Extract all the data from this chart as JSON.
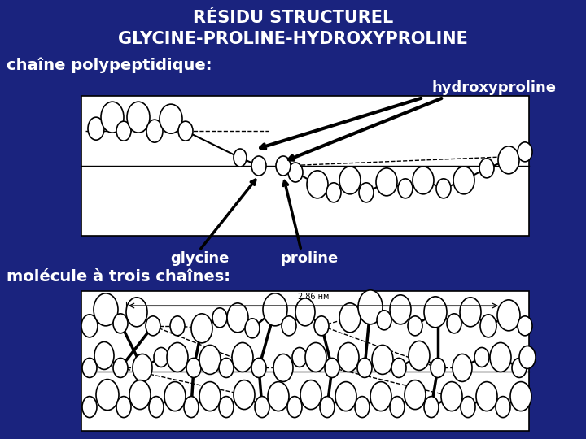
{
  "background_color": "#1a237e",
  "title_line1": "RÉSIDU STRUCTUREL",
  "title_line2": "GLYCINE-PROLINE-HYDROXYPROLINE",
  "title_color": "#ffffff",
  "title_fontsize": 15,
  "label_chain": "chaîne polypeptidique:",
  "label_hydroxy": "hydroxyproline",
  "label_glycine": "glycine",
  "label_proline": "proline",
  "label_molecule": "molécule à trois chaînes:",
  "label_color": "#ffffff",
  "label_fontsize": 14,
  "sublabel_fontsize": 13,
  "white": "#ffffff",
  "black": "#000000",
  "gray": "#888888"
}
